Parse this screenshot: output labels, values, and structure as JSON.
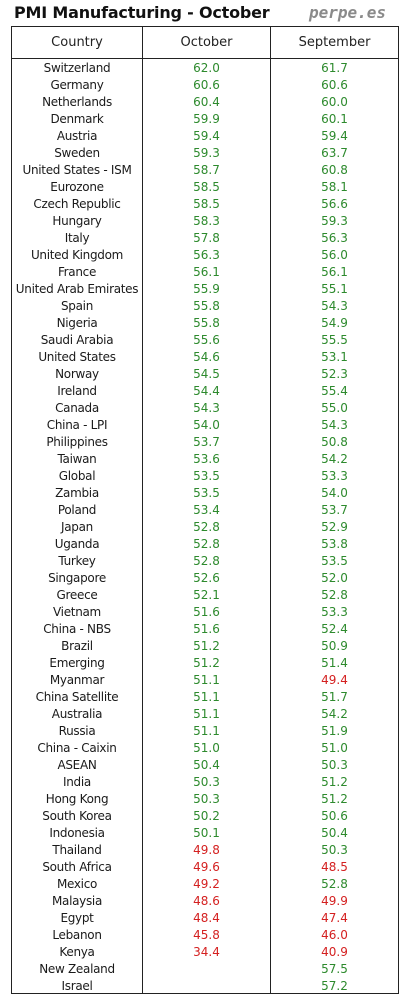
{
  "header": {
    "title": "PMI Manufacturing - October",
    "brand": "perpe.es"
  },
  "columns": [
    "Country",
    "October",
    "September"
  ],
  "chart_data": {
    "type": "table",
    "title": "PMI Manufacturing - October",
    "columns": [
      "Country",
      "October",
      "September"
    ],
    "threshold": 50,
    "colors": {
      "above": "#2d8a2d",
      "below": "#d42020"
    },
    "rows": [
      {
        "country": "Switzerland",
        "october": "62.0",
        "september": "61.7"
      },
      {
        "country": "Germany",
        "october": "60.6",
        "september": "60.6"
      },
      {
        "country": "Netherlands",
        "october": "60.4",
        "september": "60.0"
      },
      {
        "country": "Denmark",
        "october": "59.9",
        "september": "60.1"
      },
      {
        "country": "Austria",
        "october": "59.4",
        "september": "59.4"
      },
      {
        "country": "Sweden",
        "october": "59.3",
        "september": "63.7"
      },
      {
        "country": "United States - ISM",
        "october": "58.7",
        "september": "60.8"
      },
      {
        "country": "Eurozone",
        "october": "58.5",
        "september": "58.1"
      },
      {
        "country": "Czech Republic",
        "october": "58.5",
        "september": "56.6"
      },
      {
        "country": "Hungary",
        "october": "58.3",
        "september": "59.3"
      },
      {
        "country": "Italy",
        "october": "57.8",
        "september": "56.3"
      },
      {
        "country": "United Kingdom",
        "october": "56.3",
        "september": "56.0"
      },
      {
        "country": "France",
        "october": "56.1",
        "september": "56.1"
      },
      {
        "country": "United Arab Emirates",
        "october": "55.9",
        "september": "55.1"
      },
      {
        "country": "Spain",
        "october": "55.8",
        "september": "54.3"
      },
      {
        "country": "Nigeria",
        "october": "55.8",
        "september": "54.9"
      },
      {
        "country": "Saudi Arabia",
        "october": "55.6",
        "september": "55.5"
      },
      {
        "country": "United States",
        "october": "54.6",
        "september": "53.1"
      },
      {
        "country": "Norway",
        "october": "54.5",
        "september": "52.3"
      },
      {
        "country": "Ireland",
        "october": "54.4",
        "september": "55.4"
      },
      {
        "country": "Canada",
        "october": "54.3",
        "september": "55.0"
      },
      {
        "country": "China - LPI",
        "october": "54.0",
        "september": "54.3"
      },
      {
        "country": "Philippines",
        "october": "53.7",
        "september": "50.8"
      },
      {
        "country": "Taiwan",
        "october": "53.6",
        "september": "54.2"
      },
      {
        "country": "Global",
        "october": "53.5",
        "september": "53.3"
      },
      {
        "country": "Zambia",
        "october": "53.5",
        "september": "54.0"
      },
      {
        "country": "Poland",
        "october": "53.4",
        "september": "53.7"
      },
      {
        "country": "Japan",
        "october": "52.8",
        "september": "52.9"
      },
      {
        "country": "Uganda",
        "october": "52.8",
        "september": "53.8"
      },
      {
        "country": "Turkey",
        "october": "52.8",
        "september": "53.5"
      },
      {
        "country": "Singapore",
        "october": "52.6",
        "september": "52.0"
      },
      {
        "country": "Greece",
        "october": "52.1",
        "september": "52.8"
      },
      {
        "country": "Vietnam",
        "october": "51.6",
        "september": "53.3"
      },
      {
        "country": "China - NBS",
        "october": "51.6",
        "september": "52.4"
      },
      {
        "country": "Brazil",
        "october": "51.2",
        "september": "50.9"
      },
      {
        "country": "Emerging",
        "october": "51.2",
        "september": "51.4"
      },
      {
        "country": "Myanmar",
        "october": "51.1",
        "september": "49.4"
      },
      {
        "country": "China Satellite",
        "october": "51.1",
        "september": "51.7"
      },
      {
        "country": "Australia",
        "october": "51.1",
        "september": "54.2"
      },
      {
        "country": "Russia",
        "october": "51.1",
        "september": "51.9"
      },
      {
        "country": "China - Caixin",
        "october": "51.0",
        "september": "51.0"
      },
      {
        "country": "ASEAN",
        "october": "50.4",
        "september": "50.3"
      },
      {
        "country": "India",
        "october": "50.3",
        "september": "51.2"
      },
      {
        "country": "Hong Kong",
        "october": "50.3",
        "september": "51.2"
      },
      {
        "country": "South Korea",
        "october": "50.2",
        "september": "50.6"
      },
      {
        "country": "Indonesia",
        "october": "50.1",
        "september": "50.4"
      },
      {
        "country": "Thailand",
        "october": "49.8",
        "september": "50.3"
      },
      {
        "country": "South Africa",
        "october": "49.6",
        "september": "48.5"
      },
      {
        "country": "Mexico",
        "october": "49.2",
        "september": "52.8"
      },
      {
        "country": "Malaysia",
        "october": "48.6",
        "september": "49.9"
      },
      {
        "country": "Egypt",
        "october": "48.4",
        "september": "47.4"
      },
      {
        "country": "Lebanon",
        "october": "45.8",
        "september": "46.0"
      },
      {
        "country": "Kenya",
        "october": "34.4",
        "september": "40.9"
      },
      {
        "country": "New Zealand",
        "october": "",
        "september": "57.5"
      },
      {
        "country": "Israel",
        "october": "",
        "september": "57.2"
      }
    ]
  }
}
